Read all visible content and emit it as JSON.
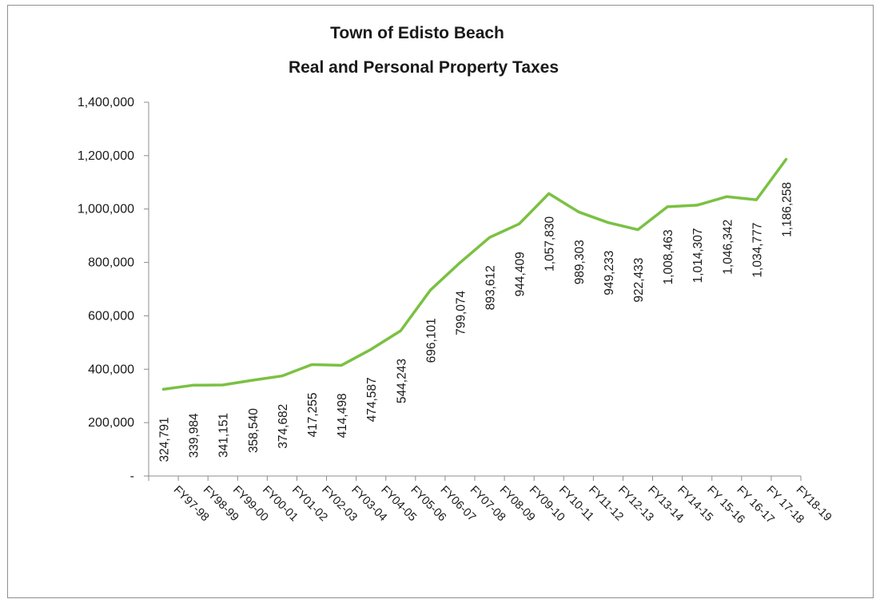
{
  "chart_data": {
    "type": "line",
    "title": "Town of  Edisto Beach",
    "subtitle": "Real and Personal Property Taxes",
    "xlabel": "",
    "ylabel": "",
    "ylim": [
      0,
      1400000
    ],
    "grid": false,
    "legend": "none",
    "y_ticks": [
      {
        "value": 0,
        "label": "-"
      },
      {
        "value": 200000,
        "label": "200,000"
      },
      {
        "value": 400000,
        "label": "400,000"
      },
      {
        "value": 600000,
        "label": "600,000"
      },
      {
        "value": 800000,
        "label": "800,000"
      },
      {
        "value": 1000000,
        "label": "1,000,000"
      },
      {
        "value": 1200000,
        "label": "1,200,000"
      },
      {
        "value": 1400000,
        "label": "1,400,000"
      }
    ],
    "categories": [
      "FY97-98",
      "FY98-99",
      "FY99-00",
      "FY00-01",
      "FY01-02",
      "FY02-03",
      "FY03-04",
      "FY04-05",
      "FY05-06",
      "FY06-07",
      "FY07-08",
      "FY08-09",
      "FY09-10",
      "FY10-11",
      "FY11-12",
      "FY12-13",
      "FY13-14",
      "FY14-15",
      "FY 15-16",
      "FY 16-17",
      "FY 17-18",
      "FY18-19"
    ],
    "values": [
      324791,
      339984,
      341151,
      358540,
      374682,
      417255,
      414498,
      474587,
      544243,
      696101,
      799074,
      893612,
      944409,
      1057830,
      989303,
      949233,
      922433,
      1008463,
      1014307,
      1046342,
      1034777,
      1186258
    ],
    "data_labels": [
      "324,791",
      "339,984",
      "341,151",
      "358,540",
      "374,682",
      "417,255",
      "414,498",
      "474,587",
      "544,243",
      "696,101",
      "799,074",
      "893,612",
      "944,409",
      "1,057,830",
      "989,303",
      "949,233",
      "922,433",
      "1,008,463",
      "1,014,307",
      "1,046,342",
      "1,034,777",
      "1,186,258"
    ],
    "colors": {
      "line": "#7ac143",
      "axis": "#8c8c8c",
      "text": "#1a1a1a",
      "frame": "#8f8f8f"
    }
  }
}
